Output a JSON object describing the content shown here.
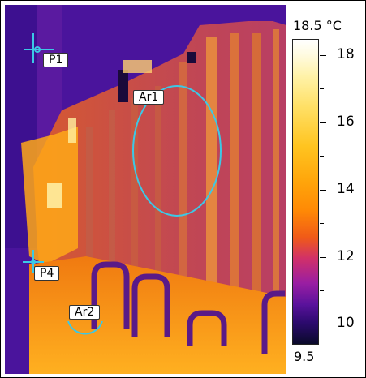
{
  "scale": {
    "max_label": "18.5 °C",
    "min_label": "9.5",
    "ticks": [
      "18",
      "16",
      "14",
      "12",
      "10"
    ]
  },
  "markers": {
    "spot_1": "P1",
    "spot_4": "P4",
    "area_1": "Ar1",
    "area_2": "Ar2"
  },
  "colors": {
    "marker_outline": "#3cc8e6",
    "background_cold": "#4a149c",
    "warm": "#ffa010",
    "hot": "#fff2b0"
  }
}
